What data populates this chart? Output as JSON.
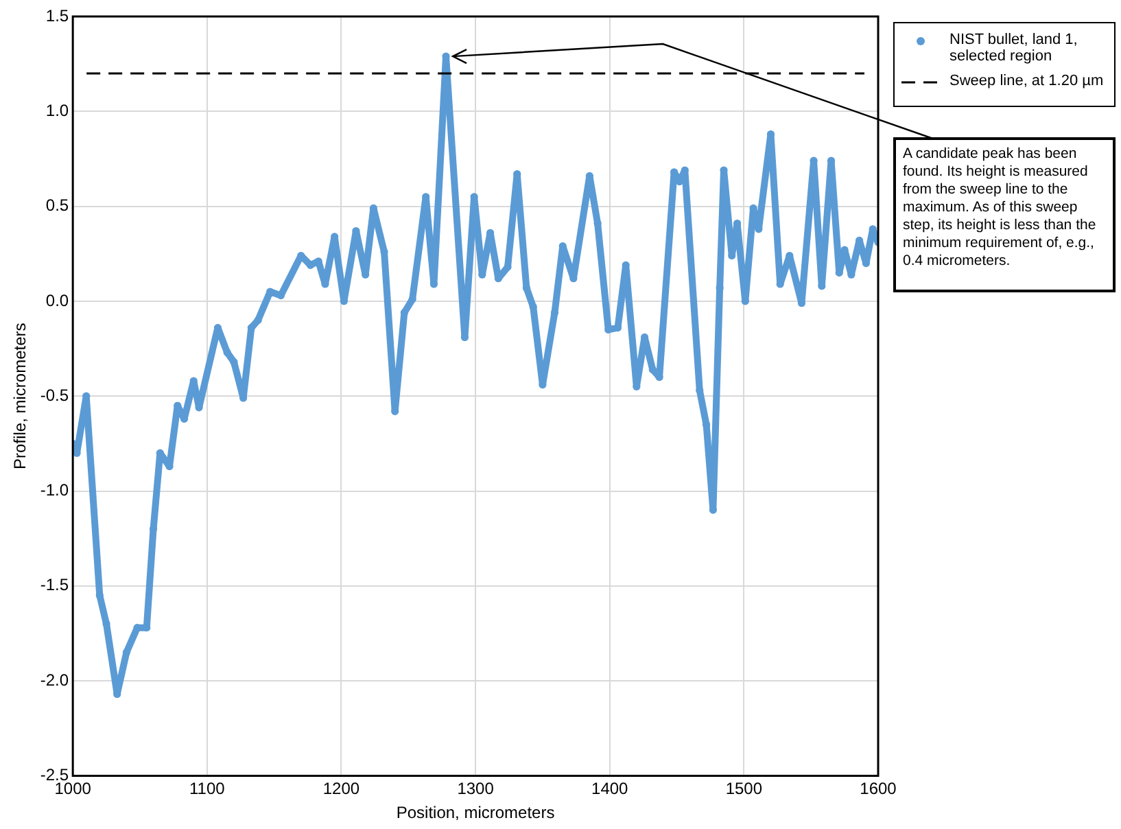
{
  "chart_data": {
    "type": "line",
    "xlabel": "Position, micrometers",
    "ylabel": "Profile, micrometers",
    "xlim": [
      1000,
      1600
    ],
    "xticks": [
      1000,
      1100,
      1200,
      1300,
      1400,
      1500,
      1600
    ],
    "ylim": [
      -2.5,
      1.5
    ],
    "yticks": [
      {
        "value": -2.5,
        "label": "-2.5"
      },
      {
        "value": -2,
        "label": "-2.0"
      },
      {
        "value": -1.5,
        "label": "-1.5"
      },
      {
        "value": -1,
        "label": "-1.0"
      },
      {
        "value": -0.5,
        "label": "-0.5"
      },
      {
        "value": 0,
        "label": "0.0"
      },
      {
        "value": 0.5,
        "label": "0.5"
      },
      {
        "value": 1,
        "label": "1.0"
      },
      {
        "value": 1.5,
        "label": "1.5"
      }
    ],
    "grid": true,
    "legend": "top right",
    "marker": "circle",
    "series": [
      {
        "name": "NIST bullet, land 1, selected region",
        "color": "#5b9bd5",
        "x": [
          1000,
          1003,
          1010,
          1020,
          1025,
          1033,
          1040,
          1048,
          1055,
          1060,
          1065,
          1072,
          1078,
          1083,
          1090,
          1094,
          1108,
          1115,
          1120,
          1127,
          1133,
          1138,
          1147,
          1155,
          1170,
          1177,
          1183,
          1188,
          1195,
          1202,
          1211,
          1218,
          1224,
          1232,
          1240,
          1247,
          1253,
          1263,
          1269,
          1278,
          1292,
          1299,
          1305,
          1311,
          1317,
          1324,
          1331,
          1338,
          1343,
          1350,
          1359,
          1365,
          1373,
          1385,
          1391,
          1399,
          1406,
          1412,
          1420,
          1426,
          1432,
          1437,
          1448,
          1452,
          1456,
          1467,
          1472,
          1477,
          1482,
          1485,
          1491,
          1495,
          1501,
          1507,
          1511,
          1520,
          1527,
          1534,
          1543,
          1552,
          1558,
          1565,
          1571,
          1575,
          1580,
          1586,
          1591,
          1596,
          1600
        ],
        "values": [
          -0.75,
          -0.8,
          -0.5,
          -1.55,
          -1.7,
          -2.07,
          -1.85,
          -1.72,
          -1.72,
          -1.2,
          -0.8,
          -0.87,
          -0.55,
          -0.62,
          -0.42,
          -0.56,
          -0.14,
          -0.27,
          -0.32,
          -0.51,
          -0.14,
          -0.1,
          0.05,
          0.03,
          0.24,
          0.19,
          0.21,
          0.09,
          0.34,
          0.0,
          0.37,
          0.14,
          0.49,
          0.26,
          -0.58,
          -0.06,
          0.01,
          0.55,
          0.09,
          1.29,
          -0.19,
          0.55,
          0.14,
          0.36,
          0.12,
          0.18,
          0.67,
          0.07,
          -0.03,
          -0.44,
          -0.06,
          0.29,
          0.12,
          0.66,
          0.41,
          -0.15,
          -0.14,
          0.19,
          -0.45,
          -0.19,
          -0.36,
          -0.4,
          0.68,
          0.63,
          0.69,
          -0.47,
          -0.65,
          -1.1,
          0.07,
          0.69,
          0.24,
          0.41,
          0.0,
          0.49,
          0.38,
          0.88,
          0.09,
          0.24,
          -0.01,
          0.74,
          0.08,
          0.74,
          0.15,
          0.27,
          0.14,
          0.32,
          0.2,
          0.38,
          0.31
        ]
      }
    ],
    "ref_lines": [
      {
        "axis": "y",
        "value": 1.2,
        "label": "Sweep line, at 1.20 µm",
        "color": "#000000",
        "line_style": "dashed"
      }
    ],
    "annotations": [
      {
        "text": "A candidate peak has been found. Its height is measured from the sweep line to the maximum. As of this sweep step, its height is less than the minimum requirement of, e.g., 0.4 micrometers.",
        "x": 1278,
        "y": 1.29
      }
    ]
  }
}
